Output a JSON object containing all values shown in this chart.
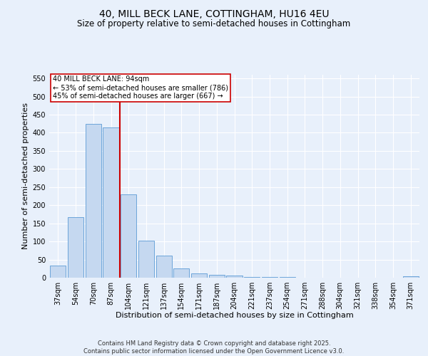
{
  "title": "40, MILL BECK LANE, COTTINGHAM, HU16 4EU",
  "subtitle": "Size of property relative to semi-detached houses in Cottingham",
  "xlabel": "Distribution of semi-detached houses by size in Cottingham",
  "ylabel": "Number of semi-detached properties",
  "bar_labels": [
    "37sqm",
    "54sqm",
    "70sqm",
    "87sqm",
    "104sqm",
    "121sqm",
    "137sqm",
    "154sqm",
    "171sqm",
    "187sqm",
    "204sqm",
    "221sqm",
    "237sqm",
    "254sqm",
    "271sqm",
    "288sqm",
    "304sqm",
    "321sqm",
    "338sqm",
    "354sqm",
    "371sqm"
  ],
  "bar_values": [
    33,
    168,
    425,
    415,
    230,
    102,
    60,
    25,
    12,
    8,
    5,
    2,
    1,
    1,
    0,
    0,
    0,
    0,
    0,
    0,
    3
  ],
  "bar_color": "#c5d8f0",
  "bar_edge_color": "#5b9bd5",
  "vline_x": 3.5,
  "vline_color": "#cc0000",
  "ylim": [
    0,
    560
  ],
  "yticks": [
    0,
    50,
    100,
    150,
    200,
    250,
    300,
    350,
    400,
    450,
    500,
    550
  ],
  "annotation_text": "40 MILL BECK LANE: 94sqm\n← 53% of semi-detached houses are smaller (786)\n45% of semi-detached houses are larger (667) →",
  "annotation_box_color": "#ffffff",
  "annotation_box_edge": "#cc0000",
  "background_color": "#e8f0fb",
  "grid_color": "#ffffff",
  "footer": "Contains HM Land Registry data © Crown copyright and database right 2025.\nContains public sector information licensed under the Open Government Licence v3.0.",
  "title_fontsize": 10,
  "subtitle_fontsize": 8.5,
  "axis_label_fontsize": 8,
  "tick_fontsize": 7,
  "annotation_fontsize": 7,
  "footer_fontsize": 6
}
